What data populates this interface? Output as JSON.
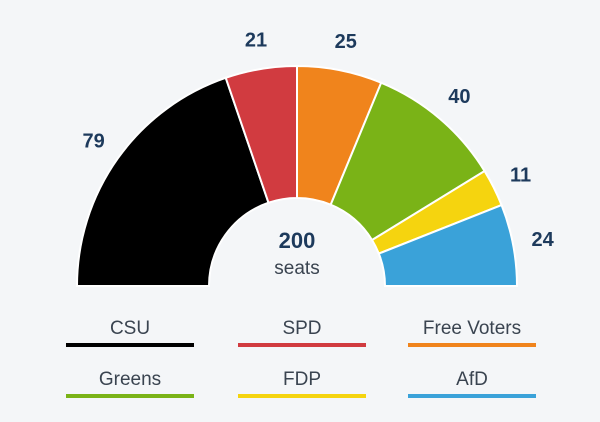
{
  "chart_data": {
    "type": "pie",
    "subtype": "parliament-semicircle",
    "total": "200",
    "total_label": "seats",
    "series": [
      {
        "name": "CSU",
        "value": 79,
        "color": "#000000"
      },
      {
        "name": "SPD",
        "value": 21,
        "color": "#d13b40"
      },
      {
        "name": "Free Voters",
        "value": 25,
        "color": "#f0841c"
      },
      {
        "name": "Greens",
        "value": 40,
        "color": "#7ab317"
      },
      {
        "name": "FDP",
        "value": 11,
        "color": "#f5d40f"
      },
      {
        "name": "AfD",
        "value": 24,
        "color": "#3aa2d9"
      }
    ]
  }
}
